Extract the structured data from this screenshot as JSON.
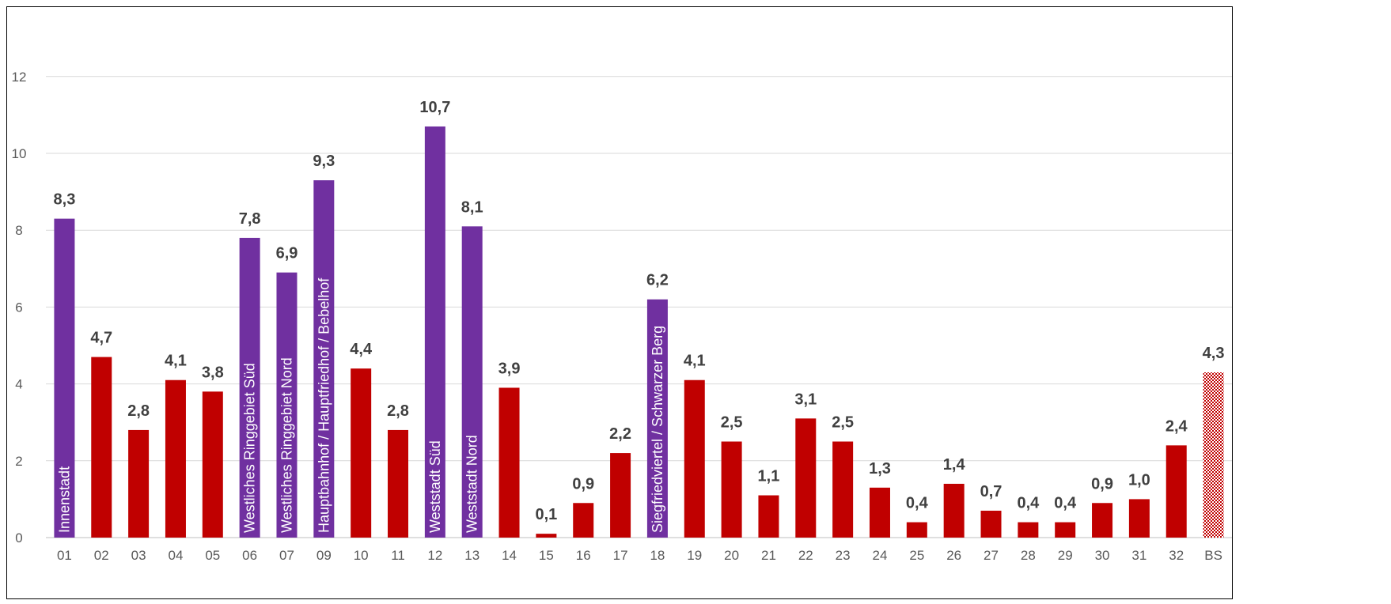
{
  "chart_data": {
    "type": "bar",
    "title": "",
    "xlabel": "",
    "ylabel": "",
    "ylim": [
      0,
      12
    ],
    "yticks": [
      0,
      2,
      4,
      6,
      8,
      10,
      12
    ],
    "grid": true,
    "legend": "none",
    "colors": {
      "highlight": "#7030A0",
      "default": "#C00000",
      "total_pattern_a": "#C00000",
      "total_pattern_b": "#FFFFFF",
      "grid": "#D9D9D9",
      "axis": "#BFBFBF"
    },
    "bars": [
      {
        "category": "01",
        "value": 8.3,
        "label": "8,3",
        "highlight": true,
        "name": "Innenstadt"
      },
      {
        "category": "02",
        "value": 4.7,
        "label": "4,7",
        "highlight": false,
        "name": ""
      },
      {
        "category": "03",
        "value": 2.8,
        "label": "2,8",
        "highlight": false,
        "name": ""
      },
      {
        "category": "04",
        "value": 4.1,
        "label": "4,1",
        "highlight": false,
        "name": ""
      },
      {
        "category": "05",
        "value": 3.8,
        "label": "3,8",
        "highlight": false,
        "name": ""
      },
      {
        "category": "06",
        "value": 7.8,
        "label": "7,8",
        "highlight": true,
        "name": "Westliches Ringgebiet Süd"
      },
      {
        "category": "07",
        "value": 6.9,
        "label": "6,9",
        "highlight": true,
        "name": "Westliches Ringgebiet Nord"
      },
      {
        "category": "09",
        "value": 9.3,
        "label": "9,3",
        "highlight": true,
        "name": "Hauptbahnhof / Hauptfriedhof / Bebelhof"
      },
      {
        "category": "10",
        "value": 4.4,
        "label": "4,4",
        "highlight": false,
        "name": ""
      },
      {
        "category": "11",
        "value": 2.8,
        "label": "2,8",
        "highlight": false,
        "name": ""
      },
      {
        "category": "12",
        "value": 10.7,
        "label": "10,7",
        "highlight": true,
        "name": "Weststadt Süd"
      },
      {
        "category": "13",
        "value": 8.1,
        "label": "8,1",
        "highlight": true,
        "name": "Weststadt Nord"
      },
      {
        "category": "14",
        "value": 3.9,
        "label": "3,9",
        "highlight": false,
        "name": ""
      },
      {
        "category": "15",
        "value": 0.1,
        "label": "0,1",
        "highlight": false,
        "name": ""
      },
      {
        "category": "16",
        "value": 0.9,
        "label": "0,9",
        "highlight": false,
        "name": ""
      },
      {
        "category": "17",
        "value": 2.2,
        "label": "2,2",
        "highlight": false,
        "name": ""
      },
      {
        "category": "18",
        "value": 6.2,
        "label": "6,2",
        "highlight": true,
        "name": "Siegfriedviertel / Schwarzer Berg"
      },
      {
        "category": "19",
        "value": 4.1,
        "label": "4,1",
        "highlight": false,
        "name": ""
      },
      {
        "category": "20",
        "value": 2.5,
        "label": "2,5",
        "highlight": false,
        "name": ""
      },
      {
        "category": "21",
        "value": 1.1,
        "label": "1,1",
        "highlight": false,
        "name": ""
      },
      {
        "category": "22",
        "value": 3.1,
        "label": "3,1",
        "highlight": false,
        "name": ""
      },
      {
        "category": "23",
        "value": 2.5,
        "label": "2,5",
        "highlight": false,
        "name": ""
      },
      {
        "category": "24",
        "value": 1.3,
        "label": "1,3",
        "highlight": false,
        "name": ""
      },
      {
        "category": "25",
        "value": 0.4,
        "label": "0,4",
        "highlight": false,
        "name": ""
      },
      {
        "category": "26",
        "value": 1.4,
        "label": "1,4",
        "highlight": false,
        "name": ""
      },
      {
        "category": "27",
        "value": 0.7,
        "label": "0,7",
        "highlight": false,
        "name": ""
      },
      {
        "category": "28",
        "value": 0.4,
        "label": "0,4",
        "highlight": false,
        "name": ""
      },
      {
        "category": "29",
        "value": 0.4,
        "label": "0,4",
        "highlight": false,
        "name": ""
      },
      {
        "category": "30",
        "value": 0.9,
        "label": "0,9",
        "highlight": false,
        "name": ""
      },
      {
        "category": "31",
        "value": 1.0,
        "label": "1,0",
        "highlight": false,
        "name": ""
      },
      {
        "category": "32",
        "value": 2.4,
        "label": "2,4",
        "highlight": false,
        "name": ""
      },
      {
        "category": "BS",
        "value": 4.3,
        "label": "4,3",
        "highlight": false,
        "total": true,
        "name": ""
      }
    ]
  }
}
